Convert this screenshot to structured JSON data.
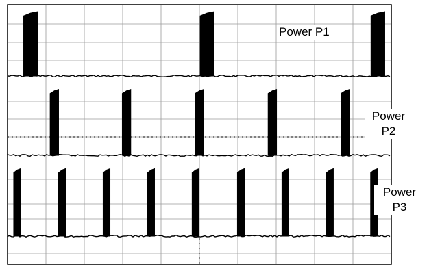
{
  "chart_data": {
    "type": "line",
    "title": "",
    "xlabel": "",
    "ylabel": "",
    "grid": true,
    "traces": [
      {
        "name": "Power P1",
        "label_lines": [
          "Power P1"
        ],
        "pulse_centers": [
          0.06,
          0.52,
          0.965
        ],
        "pulse_width": 0.036,
        "pulse_height": 0.92
      },
      {
        "name": "Power P2",
        "label_lines": [
          "Power",
          "P2"
        ],
        "pulse_centers": [
          0.122,
          0.31,
          0.5,
          0.69,
          0.88
        ],
        "pulse_width": 0.022,
        "pulse_height": 0.9
      },
      {
        "name": "Power P3",
        "label_lines": [
          "Power",
          "P3"
        ],
        "pulse_centers": [
          0.025,
          0.142,
          0.258,
          0.374,
          0.49,
          0.608,
          0.724,
          0.84,
          0.955
        ],
        "pulse_width": 0.018,
        "pulse_height": 0.88
      }
    ],
    "colors": {
      "trace": "#000000",
      "grid": "#9a9a9a",
      "frame": "#000000",
      "background": "#ffffff"
    }
  }
}
